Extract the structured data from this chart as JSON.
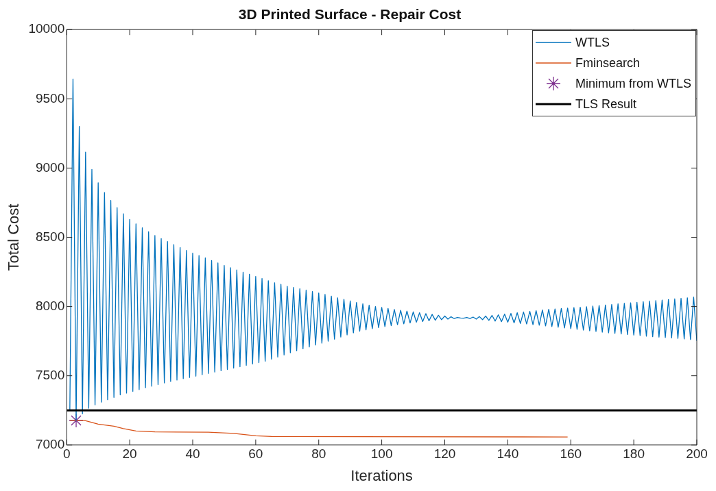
{
  "chart_data": {
    "type": "line",
    "title": "3D Printed Surface - Repair Cost",
    "xlabel": "Iterations",
    "ylabel": "Total Cost",
    "xlim": [
      0,
      200
    ],
    "xticks": [
      0,
      20,
      40,
      60,
      80,
      100,
      120,
      140,
      160,
      180,
      200
    ],
    "ylim": [
      7000,
      10000
    ],
    "yticks": [
      7000,
      7500,
      8000,
      8500,
      9000,
      9500,
      10000
    ],
    "grid": false,
    "legend": "top right",
    "line_style": "solid",
    "marker": "none",
    "series": [
      {
        "name": "WTLS",
        "color": "#0072bd",
        "x": [
          1,
          2,
          3,
          4,
          5,
          6,
          7,
          8,
          9,
          10,
          11,
          12,
          13,
          14,
          15,
          16,
          17,
          18,
          19,
          20,
          21,
          22,
          23,
          24,
          25,
          26,
          27,
          28,
          29,
          30,
          31,
          32,
          33,
          34,
          35,
          36,
          37,
          38,
          39,
          40,
          41,
          42,
          43,
          44,
          45,
          46,
          47,
          48,
          49,
          50,
          51,
          52,
          53,
          54,
          55,
          56,
          57,
          58,
          59,
          60,
          61,
          62,
          63,
          64,
          65,
          66,
          67,
          68,
          69,
          70,
          71,
          72,
          73,
          74,
          75,
          76,
          77,
          78,
          79,
          80,
          81,
          82,
          83,
          84,
          85,
          86,
          87,
          88,
          89,
          90,
          91,
          92,
          93,
          94,
          95,
          96,
          97,
          98,
          99,
          100,
          101,
          102,
          103,
          104,
          105,
          106,
          107,
          108,
          109,
          110,
          111,
          112,
          113,
          114,
          115,
          116,
          117,
          118,
          119,
          120,
          121,
          122,
          123,
          124,
          125,
          126,
          127,
          128,
          129,
          130,
          131,
          132,
          133,
          134,
          135,
          136,
          137,
          138,
          139,
          140,
          141,
          142,
          143,
          144,
          145,
          146,
          147,
          148,
          149,
          150,
          151,
          152,
          153,
          154,
          155,
          156,
          157,
          158,
          159,
          160,
          161,
          162,
          163,
          164,
          165,
          166,
          167,
          168,
          169,
          170,
          171,
          172,
          173,
          174,
          175,
          176,
          177,
          178,
          179,
          180,
          181,
          182,
          183,
          184,
          185,
          186,
          187,
          188,
          189,
          190,
          191,
          192,
          193,
          194,
          195,
          196,
          197,
          198,
          199,
          200
        ],
        "values": [
          7250,
          9643,
          7177,
          9301,
          7225,
          9115,
          7266,
          8990,
          7289,
          8894,
          7310,
          8823,
          7327,
          8766,
          7344,
          8714,
          7362,
          8670,
          7375,
          8629,
          7387,
          8597,
          7400,
          8568,
          7413,
          8540,
          7425,
          8513,
          7437,
          8490,
          7448,
          8469,
          7459,
          8447,
          7469,
          8426,
          7479,
          8405,
          7488,
          8386,
          7497,
          8368,
          7507,
          8351,
          7517,
          8332,
          7527,
          8315,
          7536,
          8297,
          7545,
          8280,
          7555,
          8264,
          7565,
          8248,
          7575,
          8233,
          7585,
          8217,
          7595,
          8202,
          7605,
          8186,
          7620,
          8172,
          7635,
          8160,
          7650,
          8146,
          7666,
          8138,
          7680,
          8128,
          7694,
          8118,
          7708,
          8108,
          7722,
          8098,
          7736,
          8088,
          7750,
          8075,
          7764,
          8063,
          7780,
          8052,
          7795,
          8040,
          7810,
          8030,
          7822,
          8020,
          7832,
          8010,
          7840,
          8000,
          7848,
          7993,
          7855,
          7986,
          7862,
          7979,
          7869,
          7973,
          7875,
          7967,
          7881,
          7961,
          7887,
          7955,
          7892,
          7949,
          7897,
          7943,
          7901,
          7937,
          7905,
          7931,
          7909,
          7926,
          7913,
          7921,
          7917,
          7916,
          7921,
          7913,
          7924,
          7909,
          7927,
          7905,
          7931,
          7900,
          7936,
          7895,
          7940,
          7891,
          7945,
          7887,
          7950,
          7882,
          7955,
          7878,
          7960,
          7874,
          7965,
          7869,
          7970,
          7865,
          7975,
          7860,
          7980,
          7855,
          7983,
          7850,
          7986,
          7845,
          7989,
          7840,
          7992,
          7835,
          7995,
          7830,
          7999,
          7825,
          8003,
          7820,
          8007,
          7815,
          8011,
          7810,
          8015,
          7806,
          8019,
          7802,
          8023,
          7798,
          8027,
          7794,
          8031,
          7790,
          8035,
          7786,
          8039,
          7782,
          8043,
          7779,
          8047,
          7776,
          8051,
          7773,
          8055,
          7770,
          8059,
          7766,
          8063,
          7762,
          8068,
          7752
        ]
      },
      {
        "name": "Fminsearch",
        "color": "#d95319",
        "x": [
          1,
          3,
          6,
          10,
          15,
          18,
          22,
          28,
          45,
          53,
          60,
          65,
          159
        ],
        "values": [
          7179,
          7179,
          7175,
          7150,
          7136,
          7118,
          7101,
          7095,
          7092,
          7084,
          7066,
          7061,
          7058
        ]
      },
      {
        "name": "Minimum from WTLS",
        "type": "scatter",
        "marker": "cross",
        "color": "#7e2f8e",
        "x": [
          3
        ],
        "values": [
          7177
        ]
      }
    ],
    "ref_lines": [
      {
        "axis": "y",
        "value": 7250,
        "label": "TLS Result",
        "color": "#000000"
      }
    ]
  }
}
